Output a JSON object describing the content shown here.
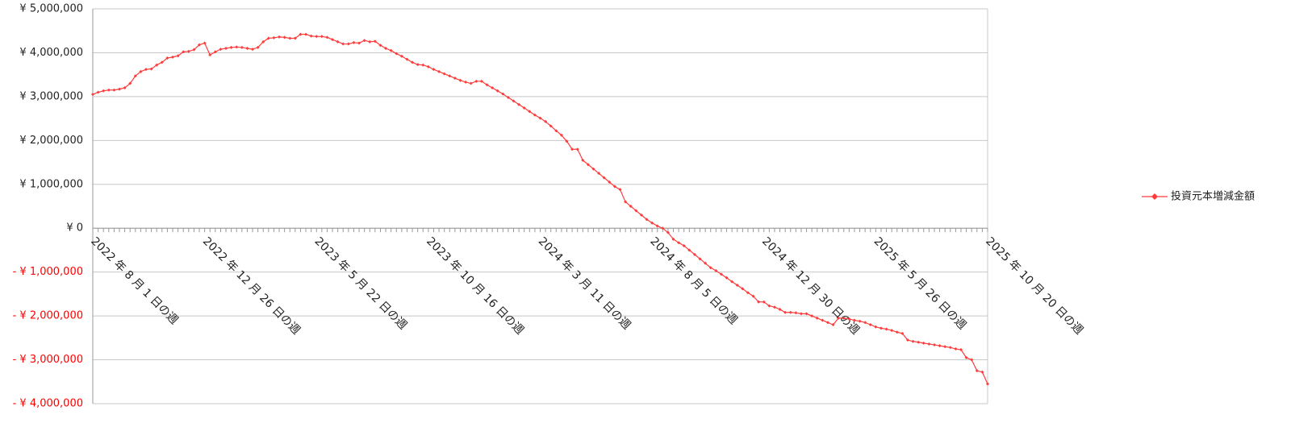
{
  "chart_data": {
    "type": "line",
    "categories": [
      "2022 年 8 月 1 日の週",
      null,
      null,
      null,
      null,
      null,
      null,
      null,
      null,
      null,
      null,
      null,
      null,
      null,
      null,
      null,
      null,
      null,
      null,
      null,
      null,
      "2022 年 12 月 26 日の週",
      null,
      null,
      null,
      null,
      null,
      null,
      null,
      null,
      null,
      null,
      null,
      null,
      null,
      null,
      null,
      null,
      null,
      null,
      null,
      null,
      "2023 年 5 月 22 日の週",
      null,
      null,
      null,
      null,
      null,
      null,
      null,
      null,
      null,
      null,
      null,
      null,
      null,
      null,
      null,
      null,
      null,
      null,
      null,
      null,
      "2023 年 10 月 16 日の週",
      null,
      null,
      null,
      null,
      null,
      null,
      null,
      null,
      null,
      null,
      null,
      null,
      null,
      null,
      null,
      null,
      null,
      null,
      null,
      null,
      "2024 年 3 月 11 日の週",
      null,
      null,
      null,
      null,
      null,
      null,
      null,
      null,
      null,
      null,
      null,
      null,
      null,
      null,
      null,
      null,
      null,
      null,
      null,
      null,
      "2024 年 8 月 5 日の週",
      null,
      null,
      null,
      null,
      null,
      null,
      null,
      null,
      null,
      null,
      null,
      null,
      null,
      null,
      null,
      null,
      null,
      null,
      null,
      null,
      "2024 年 12 月 30 日の週",
      null,
      null,
      null,
      null,
      null,
      null,
      null,
      null,
      null,
      null,
      null,
      null,
      null,
      null,
      null,
      null,
      null,
      null,
      null,
      null,
      "2025 年 5 月 26 日の週",
      null,
      null,
      null,
      null,
      null,
      null,
      null,
      null,
      null,
      null,
      null,
      null,
      null,
      null,
      null,
      null,
      null,
      null,
      null,
      null,
      "2025 年 10 月 20 日の週"
    ],
    "series": [
      {
        "name": "投資元本増減金額",
        "color": "#ff3b3b",
        "values": [
          3050000,
          3100000,
          3130000,
          3150000,
          3150000,
          3170000,
          3200000,
          3300000,
          3470000,
          3570000,
          3620000,
          3630000,
          3720000,
          3780000,
          3880000,
          3900000,
          3930000,
          4020000,
          4030000,
          4070000,
          4180000,
          4220000,
          3950000,
          4020000,
          4080000,
          4100000,
          4120000,
          4130000,
          4120000,
          4100000,
          4080000,
          4120000,
          4250000,
          4330000,
          4340000,
          4360000,
          4350000,
          4330000,
          4330000,
          4420000,
          4420000,
          4380000,
          4370000,
          4370000,
          4350000,
          4300000,
          4250000,
          4200000,
          4200000,
          4230000,
          4220000,
          4280000,
          4250000,
          4260000,
          4170000,
          4100000,
          4050000,
          3980000,
          3920000,
          3850000,
          3780000,
          3730000,
          3720000,
          3680000,
          3620000,
          3570000,
          3520000,
          3470000,
          3420000,
          3370000,
          3330000,
          3300000,
          3350000,
          3350000,
          3270000,
          3200000,
          3130000,
          3060000,
          2980000,
          2900000,
          2820000,
          2740000,
          2660000,
          2580000,
          2510000,
          2430000,
          2330000,
          2220000,
          2120000,
          1980000,
          1800000,
          1800000,
          1550000,
          1450000,
          1350000,
          1250000,
          1150000,
          1050000,
          950000,
          880000,
          600000,
          500000,
          400000,
          300000,
          200000,
          120000,
          50000,
          0,
          -100000,
          -250000,
          -330000,
          -400000,
          -500000,
          -600000,
          -700000,
          -800000,
          -900000,
          -970000,
          -1050000,
          -1130000,
          -1220000,
          -1300000,
          -1380000,
          -1470000,
          -1550000,
          -1680000,
          -1680000,
          -1770000,
          -1800000,
          -1850000,
          -1920000,
          -1920000,
          -1930000,
          -1950000,
          -1950000,
          -2000000,
          -2050000,
          -2100000,
          -2150000,
          -2200000,
          -2050000,
          -2050000,
          -2070000,
          -2100000,
          -2120000,
          -2150000,
          -2200000,
          -2250000,
          -2280000,
          -2300000,
          -2330000,
          -2370000,
          -2400000,
          -2550000,
          -2580000,
          -2600000,
          -2620000,
          -2640000,
          -2660000,
          -2680000,
          -2700000,
          -2720000,
          -2750000,
          -2770000,
          -2950000,
          -3000000,
          -3250000,
          -3280000,
          -3550000
        ]
      }
    ],
    "ylim": [
      -4000000,
      5000000
    ],
    "yticks": [
      {
        "value": -4000000,
        "label": "- ¥ 4,000,000"
      },
      {
        "value": -3000000,
        "label": "- ¥ 3,000,000"
      },
      {
        "value": -2000000,
        "label": "- ¥ 2,000,000"
      },
      {
        "value": -1000000,
        "label": "- ¥ 1,000,000"
      },
      {
        "value": 0,
        "label": "¥ 0"
      },
      {
        "value": 1000000,
        "label": "¥ 1,000,000"
      },
      {
        "value": 2000000,
        "label": "¥ 2,000,000"
      },
      {
        "value": 3000000,
        "label": "¥ 3,000,000"
      },
      {
        "value": 4000000,
        "label": "¥ 4,000,000"
      },
      {
        "value": 5000000,
        "label": "¥ 5,000,000"
      }
    ],
    "negative_tick_color": "#ff0000",
    "grid": true,
    "legend": "right"
  }
}
